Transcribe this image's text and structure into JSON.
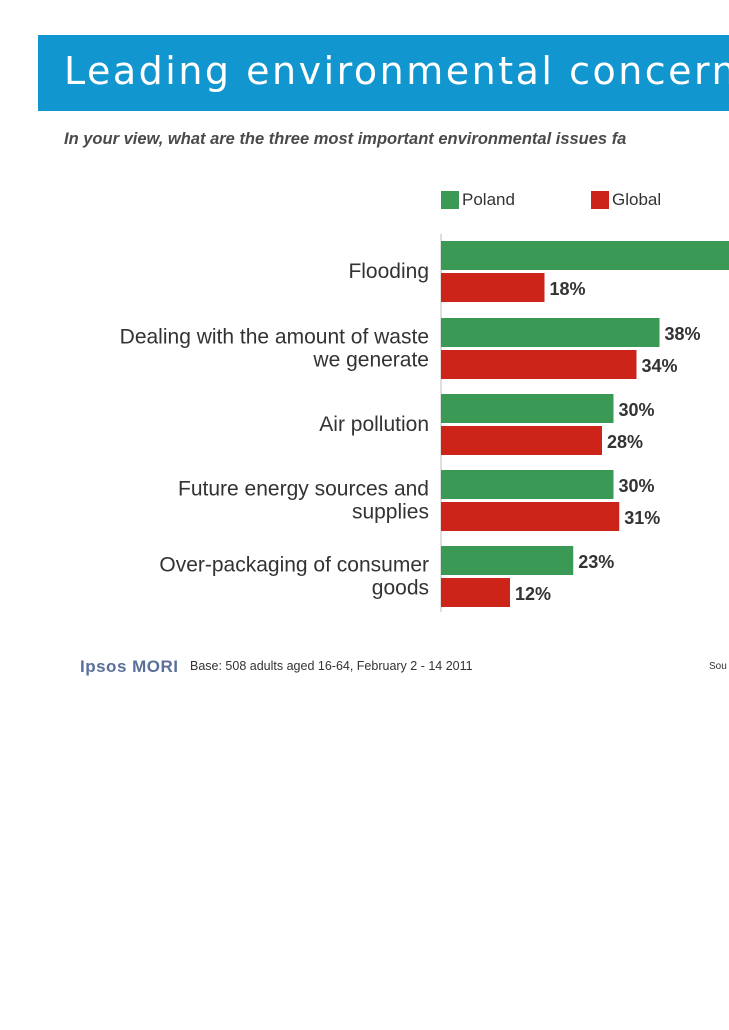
{
  "header": {
    "title": "Leading environmental concerns",
    "subtitle": "In your view, what are the three most important environmental issues fa"
  },
  "legend": {
    "poland": "Poland",
    "global": "Global"
  },
  "colors": {
    "poland": "#3a9a55",
    "global": "#cc2418",
    "title_band": "#1196cf"
  },
  "chart_data": {
    "type": "bar",
    "orientation": "horizontal",
    "title": "Leading environmental concerns",
    "categories": [
      [
        "Flooding"
      ],
      [
        "Dealing with the amount of waste",
        "we generate"
      ],
      [
        "Air pollution"
      ],
      [
        "Future energy sources and",
        "supplies"
      ],
      [
        "Over-packaging of consumer",
        "goods"
      ]
    ],
    "series": [
      {
        "name": "Poland",
        "values": [
          null,
          38,
          30,
          30,
          23
        ],
        "labels": [
          "",
          "38%",
          "30%",
          "30%",
          "23%"
        ]
      },
      {
        "name": "Global",
        "values": [
          18,
          34,
          28,
          31,
          12
        ],
        "labels": [
          "18%",
          "34%",
          "28%",
          "31%",
          "12%"
        ]
      }
    ],
    "truncated_bar_note": "Poland Flooding bar extends beyond the visible image edge",
    "value_unit": "%"
  },
  "footer": {
    "logo": "Ipsos MORI",
    "base": "Base: 508 adults aged 16-64, February 2 - 14 2011",
    "source": "Sou"
  }
}
